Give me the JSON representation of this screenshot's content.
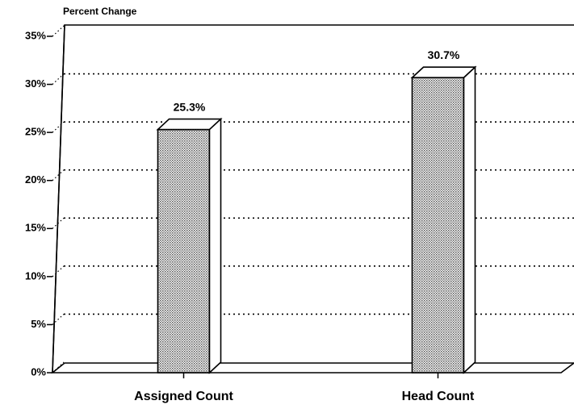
{
  "chart_data": {
    "type": "bar3d",
    "y_axis_label": "Percent Change",
    "categories": [
      "Assigned Count",
      "Head Count"
    ],
    "values": [
      25.3,
      30.7
    ],
    "value_labels": [
      "25.3%",
      "30.7%"
    ],
    "ylim": [
      0,
      35
    ],
    "yticks": [
      {
        "value": 0,
        "label": "0%"
      },
      {
        "value": 5,
        "label": "5%"
      },
      {
        "value": 10,
        "label": "10%"
      },
      {
        "value": 15,
        "label": "15%"
      },
      {
        "value": 20,
        "label": "20%"
      },
      {
        "value": 25,
        "label": "25%"
      },
      {
        "value": 30,
        "label": "30%"
      },
      {
        "value": 35,
        "label": "35%"
      }
    ],
    "grid": true,
    "color": "#bdbdbd"
  }
}
